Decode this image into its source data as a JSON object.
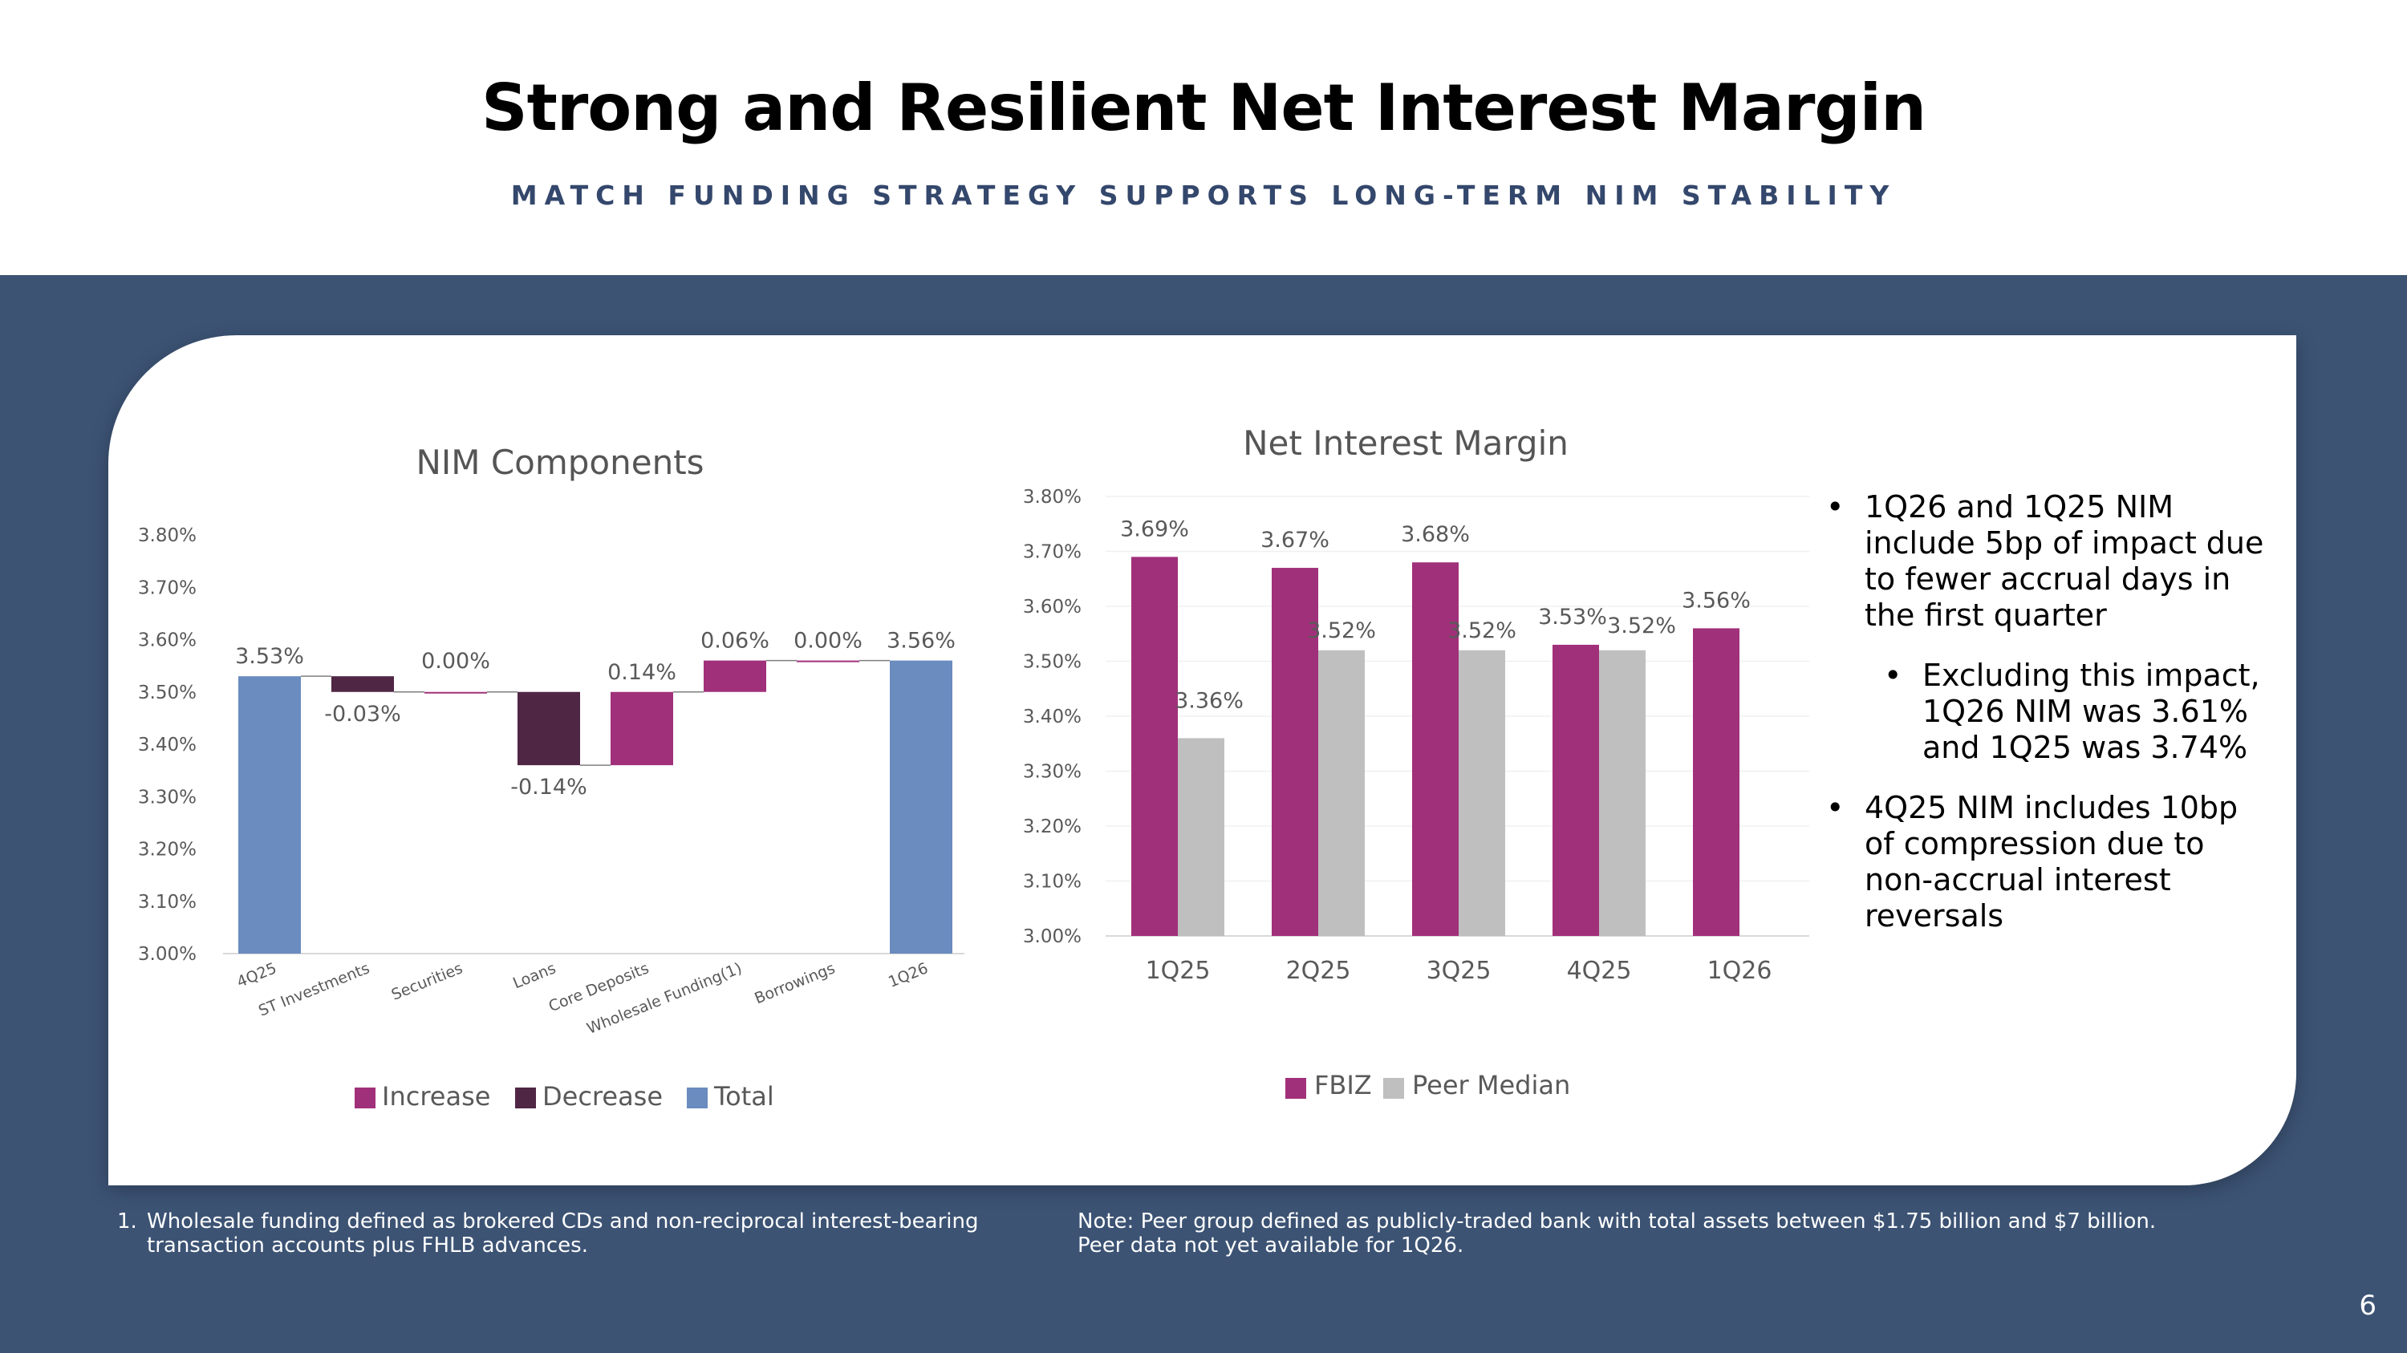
{
  "header": {
    "title": "Strong and Resilient Net Interest Margin",
    "subtitle": "MATCH FUNDING STRATEGY SUPPORTS LONG-TERM NIM STABILITY"
  },
  "colors": {
    "increase": "#a1307a",
    "decrease": "#502645",
    "total": "#6a8cbf",
    "fbiz": "#a1307a",
    "peer": "#bfbfbf",
    "band": "#3c5374"
  },
  "chart_data": [
    {
      "type": "bar",
      "subtype": "waterfall",
      "title": "NIM Components",
      "categories": [
        "4Q25",
        "ST Investments",
        "Securities",
        "Loans",
        "Core Deposits",
        "Wholesale Funding(1)",
        "Borrowings",
        "1Q26"
      ],
      "values": [
        3.53,
        -0.03,
        0.0,
        -0.14,
        0.14,
        0.06,
        0.0,
        3.56
      ],
      "kinds": [
        "total",
        "decrease",
        "increase",
        "decrease",
        "increase",
        "increase",
        "increase",
        "total"
      ],
      "data_labels": [
        "3.53%",
        "-0.03%",
        "0.00%",
        "-0.14%",
        "0.14%",
        "0.06%",
        "0.00%",
        "3.56%"
      ],
      "ylim": [
        3.0,
        3.8
      ],
      "yticks": [
        "3.00%",
        "3.10%",
        "3.20%",
        "3.30%",
        "3.40%",
        "3.50%",
        "3.60%",
        "3.70%",
        "3.80%"
      ],
      "legend": [
        "Increase",
        "Decrease",
        "Total"
      ],
      "legend_position": "bottom"
    },
    {
      "type": "bar",
      "title": "Net Interest Margin",
      "categories": [
        "1Q25",
        "2Q25",
        "3Q25",
        "4Q25",
        "1Q26"
      ],
      "series": [
        {
          "name": "FBIZ",
          "values": [
            3.69,
            3.67,
            3.68,
            3.53,
            3.56
          ],
          "labels": [
            "3.69%",
            "3.67%",
            "3.68%",
            "3.53%",
            "3.56%"
          ]
        },
        {
          "name": "Peer Median",
          "values": [
            3.36,
            3.52,
            3.52,
            3.52,
            null
          ],
          "labels": [
            "3.36%",
            "3.52%",
            "3.52%",
            "3.52%",
            ""
          ]
        }
      ],
      "ylim": [
        3.0,
        3.8
      ],
      "yticks": [
        "3.00%",
        "3.10%",
        "3.20%",
        "3.30%",
        "3.40%",
        "3.50%",
        "3.60%",
        "3.70%",
        "3.80%"
      ],
      "legend_position": "bottom"
    }
  ],
  "bullets": {
    "b1": "1Q26 and 1Q25 NIM include 5bp of impact due to fewer accrual days in the first quarter",
    "b2": "Excluding this impact, 1Q26 NIM was 3.61% and 1Q25 was 3.74%",
    "b3": "4Q25 NIM includes 10bp of compression due to non-accrual interest reversals",
    "marker": "•"
  },
  "footnotes": {
    "left_num": "1.",
    "left_l1": "Wholesale funding defined as brokered CDs and non-reciprocal interest-bearing",
    "left_l2": "transaction accounts plus FHLB advances.",
    "right_l1": "Note: Peer group defined as publicly-traded bank with total assets between $1.75 billion and $7 billion.",
    "right_l2": "Peer data not yet available for 1Q26."
  },
  "page_number": "6"
}
